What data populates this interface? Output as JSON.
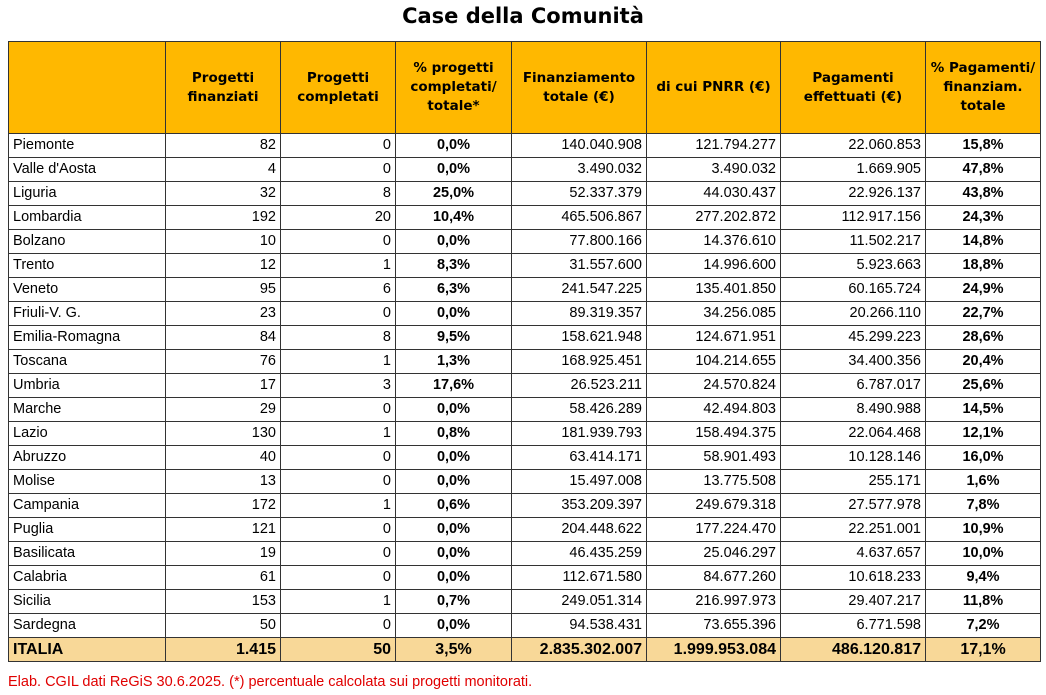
{
  "title": "Case della Comunità",
  "headers": [
    "",
    "Progetti finanziati",
    "Progetti completati",
    "% progetti completati/ totale*",
    "Finanziamento totale (€)",
    "di cui PNRR (€)",
    "Pagamenti effettuati (€)",
    "% Pagamenti/ finanziam. totale"
  ],
  "rows": [
    [
      "Piemonte",
      "82",
      "0",
      "0,0%",
      "140.040.908",
      "121.794.277",
      "22.060.853",
      "15,8%"
    ],
    [
      "Valle d'Aosta",
      "4",
      "0",
      "0,0%",
      "3.490.032",
      "3.490.032",
      "1.669.905",
      "47,8%"
    ],
    [
      "Liguria",
      "32",
      "8",
      "25,0%",
      "52.337.379",
      "44.030.437",
      "22.926.137",
      "43,8%"
    ],
    [
      "Lombardia",
      "192",
      "20",
      "10,4%",
      "465.506.867",
      "277.202.872",
      "112.917.156",
      "24,3%"
    ],
    [
      "Bolzano",
      "10",
      "0",
      "0,0%",
      "77.800.166",
      "14.376.610",
      "11.502.217",
      "14,8%"
    ],
    [
      "Trento",
      "12",
      "1",
      "8,3%",
      "31.557.600",
      "14.996.600",
      "5.923.663",
      "18,8%"
    ],
    [
      "Veneto",
      "95",
      "6",
      "6,3%",
      "241.547.225",
      "135.401.850",
      "60.165.724",
      "24,9%"
    ],
    [
      "Friuli-V. G.",
      "23",
      "0",
      "0,0%",
      "89.319.357",
      "34.256.085",
      "20.266.110",
      "22,7%"
    ],
    [
      "Emilia-Romagna",
      "84",
      "8",
      "9,5%",
      "158.621.948",
      "124.671.951",
      "45.299.223",
      "28,6%"
    ],
    [
      "Toscana",
      "76",
      "1",
      "1,3%",
      "168.925.451",
      "104.214.655",
      "34.400.356",
      "20,4%"
    ],
    [
      "Umbria",
      "17",
      "3",
      "17,6%",
      "26.523.211",
      "24.570.824",
      "6.787.017",
      "25,6%"
    ],
    [
      "Marche",
      "29",
      "0",
      "0,0%",
      "58.426.289",
      "42.494.803",
      "8.490.988",
      "14,5%"
    ],
    [
      "Lazio",
      "130",
      "1",
      "0,8%",
      "181.939.793",
      "158.494.375",
      "22.064.468",
      "12,1%"
    ],
    [
      "Abruzzo",
      "40",
      "0",
      "0,0%",
      "63.414.171",
      "58.901.493",
      "10.128.146",
      "16,0%"
    ],
    [
      "Molise",
      "13",
      "0",
      "0,0%",
      "15.497.008",
      "13.775.508",
      "255.171",
      "1,6%"
    ],
    [
      "Campania",
      "172",
      "1",
      "0,6%",
      "353.209.397",
      "249.679.318",
      "27.577.978",
      "7,8%"
    ],
    [
      "Puglia",
      "121",
      "0",
      "0,0%",
      "204.448.622",
      "177.224.470",
      "22.251.001",
      "10,9%"
    ],
    [
      "Basilicata",
      "19",
      "0",
      "0,0%",
      "46.435.259",
      "25.046.297",
      "4.637.657",
      "10,0%"
    ],
    [
      "Calabria",
      "61",
      "0",
      "0,0%",
      "112.671.580",
      "84.677.260",
      "10.618.233",
      "9,4%"
    ],
    [
      "Sicilia",
      "153",
      "1",
      "0,7%",
      "249.051.314",
      "216.997.973",
      "29.407.217",
      "11,8%"
    ],
    [
      "Sardegna",
      "50",
      "0",
      "0,0%",
      "94.538.431",
      "73.655.396",
      "6.771.598",
      "7,2%"
    ]
  ],
  "total": [
    "ITALIA",
    "1.415",
    "50",
    "3,5%",
    "2.835.302.007",
    "1.999.953.084",
    "486.120.817",
    "17,1%"
  ],
  "footnote": "Elab. CGIL dati ReGiS 30.6.2025. (*) percentuale calcolata sui progetti monitorati.",
  "colors": {
    "header": "#FFB800",
    "total": "#F8D898",
    "footnote": "#E00000"
  }
}
